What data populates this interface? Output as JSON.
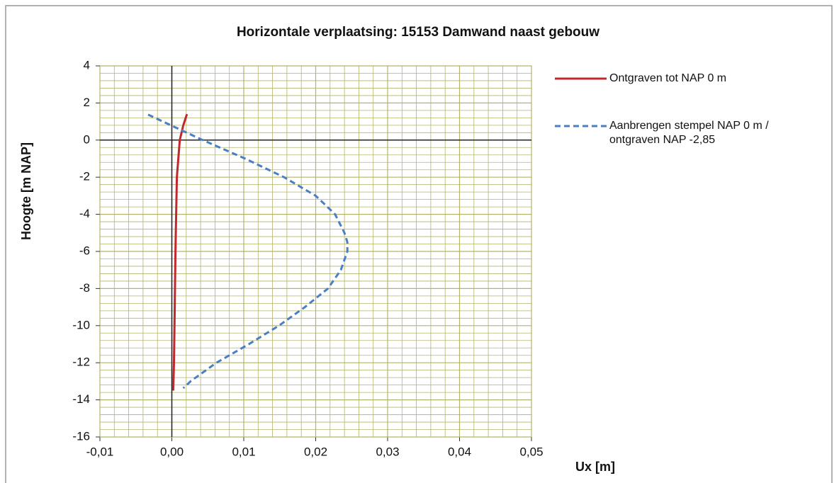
{
  "chart_data": {
    "type": "line",
    "title": "Horizontale verplaatsing: 15153 Damwand naast gebouw",
    "xlabel": "Ux [m]",
    "ylabel": "Hoogte [m NAP]",
    "xlim": [
      -0.01,
      0.05
    ],
    "ylim": [
      -16,
      4
    ],
    "xticks": [
      {
        "value": -0.01,
        "label": "-0,01"
      },
      {
        "value": 0,
        "label": "0,00"
      },
      {
        "value": 0.01,
        "label": "0,01"
      },
      {
        "value": 0.02,
        "label": "0,02"
      },
      {
        "value": 0.03,
        "label": "0,03"
      },
      {
        "value": 0.04,
        "label": "0,04"
      },
      {
        "value": 0.05,
        "label": "0,05"
      }
    ],
    "yticks": [
      -16,
      -14,
      -12,
      -10,
      -8,
      -6,
      -4,
      -2,
      0,
      2,
      4
    ],
    "grid": true,
    "legend": "right",
    "series": [
      {
        "name": "Ontgraven tot NAP 0 m",
        "color": "#c0282d",
        "dash": false,
        "x": [
          0.0021,
          0.0016,
          0.0011,
          0.0007,
          0.0005,
          0.0004,
          0.0003,
          0.0002
        ],
        "values": [
          1.4,
          0.8,
          0,
          -2,
          -6,
          -9,
          -12,
          -13.5
        ]
      },
      {
        "name": "Aanbrengen stempel NAP 0 m / ontgraven NAP -2,85",
        "color": "#4a7fc1",
        "dash": true,
        "x": [
          -0.0033,
          0.0043,
          0.0102,
          0.0156,
          0.02,
          0.0227,
          0.024,
          0.0244,
          0.0244,
          0.0235,
          0.0217,
          0.0185,
          0.0149,
          0.0107,
          0.0062,
          0.0026,
          0.0016
        ],
        "values": [
          1.37,
          0,
          -1,
          -2,
          -3,
          -4,
          -5,
          -5.5,
          -6,
          -7,
          -8,
          -9,
          -10,
          -11,
          -12,
          -13,
          -13.37
        ]
      }
    ]
  }
}
